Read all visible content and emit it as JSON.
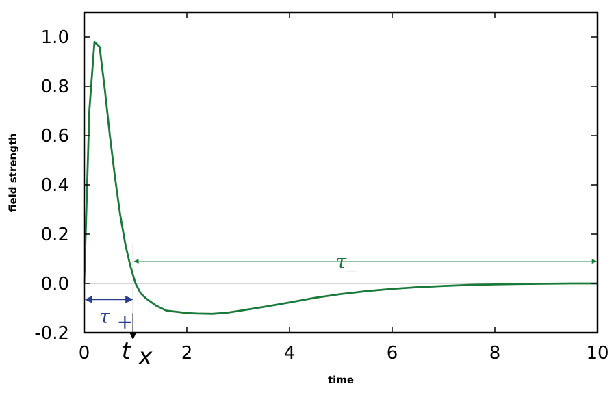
{
  "chart_data": {
    "type": "line",
    "xlabel": "time",
    "ylabel": "field strength",
    "xlim": [
      0,
      10
    ],
    "ylim": [
      -0.2,
      1.1
    ],
    "x_ticks": [
      "0",
      "2",
      "4",
      "6",
      "8",
      "10"
    ],
    "y_ticks": [
      "-0.2",
      "0.0",
      "0.2",
      "0.4",
      "0.6",
      "0.8",
      "1.0"
    ],
    "grid": false,
    "series": [
      {
        "color": "#1a7a3a",
        "x": [
          0,
          0.1,
          0.2,
          0.3,
          0.4,
          0.5,
          0.6,
          0.7,
          0.8,
          0.9,
          1.0,
          1.1,
          1.2,
          1.4,
          1.6,
          1.8,
          2.0,
          2.2,
          2.5,
          2.8,
          3.0,
          3.5,
          4.0,
          4.5,
          5.0,
          5.5,
          6.0,
          6.5,
          7.0,
          7.5,
          8.0,
          8.5,
          9.0,
          9.5,
          10.0
        ],
        "y": [
          0.0,
          0.7,
          0.98,
          0.96,
          0.79,
          0.6,
          0.43,
          0.28,
          0.16,
          0.07,
          0.0,
          -0.04,
          -0.06,
          -0.09,
          -0.11,
          -0.115,
          -0.12,
          -0.122,
          -0.123,
          -0.118,
          -0.112,
          -0.095,
          -0.077,
          -0.058,
          -0.043,
          -0.031,
          -0.022,
          -0.015,
          -0.01,
          -0.006,
          -0.004,
          -0.002,
          -0.001,
          0.0,
          0.0
        ]
      }
    ],
    "zero_line": 0.0,
    "annotations": {
      "tau_plus": {
        "label": "τ",
        "subscript": "+",
        "x_start": 0,
        "x_end": 0.95,
        "y": -0.065,
        "color": "#2b3f8f"
      },
      "tau_minus": {
        "label": "τ_",
        "x_start": 0.95,
        "x_end": 10,
        "y": 0.09,
        "color": "#1a7a3a"
      },
      "t_x": {
        "label": "t",
        "subscript": "x",
        "x": 0.95
      }
    }
  }
}
